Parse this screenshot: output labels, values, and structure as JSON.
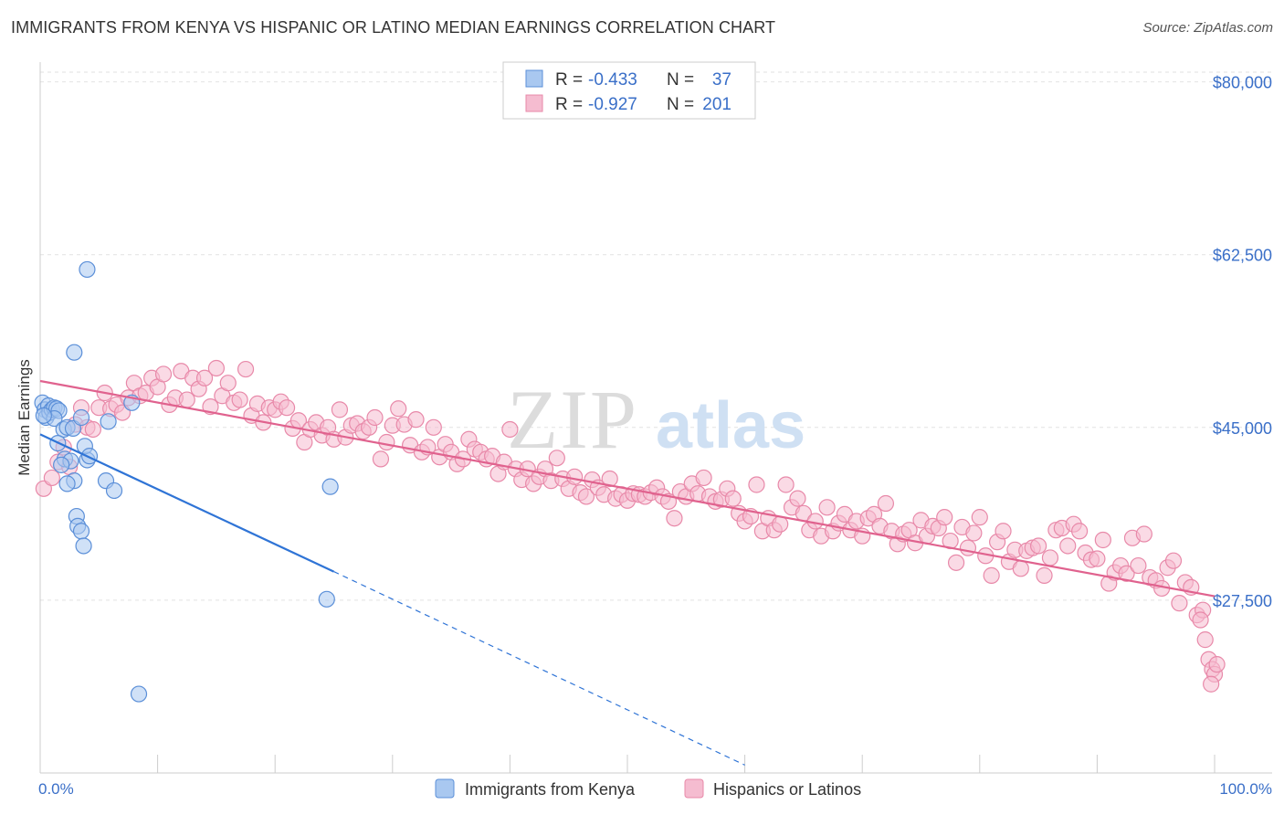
{
  "chart_data": {
    "type": "scatter",
    "title": "IMMIGRANTS FROM KENYA VS HISPANIC OR LATINO MEDIAN EARNINGS CORRELATION CHART",
    "source": "Source: ZipAtlas.com",
    "ylabel": "Median Earnings",
    "xlim": [
      0,
      100
    ],
    "ylim": [
      10000,
      82000
    ],
    "x_tick_labels": [
      "0.0%",
      "100.0%"
    ],
    "y_ticks": [
      27500,
      45000,
      62500,
      80000
    ],
    "y_tick_labels": [
      "$27,500",
      "$45,000",
      "$62,500",
      "$80,000"
    ],
    "grid": true,
    "legend_position": "top-center",
    "watermark": "ZIPatlas",
    "colors": {
      "kenya_fill": "#a9c8f0",
      "kenya_stroke": "#5b8fd8",
      "kenya_line": "#2f74d6",
      "hispanic_fill": "#f5bcd0",
      "hispanic_stroke": "#e889a9",
      "hispanic_line": "#e0628e",
      "value_text": "#3a6fc8"
    },
    "stats": [
      {
        "r_label": "R =",
        "r_value": "-0.433",
        "n_label": "N =",
        "n_value": "37"
      },
      {
        "r_label": "R =",
        "r_value": "-0.927",
        "n_label": "N =",
        "n_value": "201"
      }
    ],
    "series": [
      {
        "name": "Immigrants from Kenya",
        "trend": {
          "x0": 0,
          "y0": 44300,
          "x1": 25,
          "y1": 30400,
          "dash_x_end": 60,
          "dash_y_end": 10800
        },
        "points": [
          [
            0.2,
            47.5
          ],
          [
            0.4,
            46.8
          ],
          [
            0.5,
            46.0
          ],
          [
            0.7,
            47.2
          ],
          [
            0.8,
            46.5
          ],
          [
            1.0,
            46.8
          ],
          [
            1.2,
            47.0
          ],
          [
            1.4,
            46.9
          ],
          [
            1.6,
            46.7
          ],
          [
            1.2,
            45.9
          ],
          [
            2.0,
            44.8
          ],
          [
            2.3,
            45.0
          ],
          [
            2.8,
            44.9
          ],
          [
            3.5,
            46.0
          ],
          [
            1.5,
            43.4
          ],
          [
            2.1,
            41.8
          ],
          [
            2.6,
            41.6
          ],
          [
            1.8,
            41.2
          ],
          [
            2.9,
            39.6
          ],
          [
            4.0,
            41.7
          ],
          [
            3.8,
            43.1
          ],
          [
            4.2,
            42.1
          ],
          [
            2.3,
            39.3
          ],
          [
            5.6,
            39.6
          ],
          [
            6.3,
            38.6
          ],
          [
            3.1,
            36.0
          ],
          [
            3.2,
            35.0
          ],
          [
            3.5,
            34.5
          ],
          [
            3.7,
            33.0
          ],
          [
            4.0,
            61.0
          ],
          [
            2.9,
            52.6
          ],
          [
            5.8,
            45.6
          ],
          [
            7.8,
            47.5
          ],
          [
            24.7,
            39.0
          ],
          [
            24.4,
            27.6
          ],
          [
            8.4,
            18.0
          ],
          [
            0.3,
            46.2
          ]
        ]
      },
      {
        "name": "Hispanics or Latinos",
        "trend": {
          "x0": 0,
          "y0": 49700,
          "x1": 100,
          "y1": 27900
        },
        "points": [
          [
            0.3,
            38.8
          ],
          [
            1.0,
            39.9
          ],
          [
            1.5,
            41.5
          ],
          [
            2.0,
            43.0
          ],
          [
            2.5,
            41.0
          ],
          [
            3.0,
            45.3
          ],
          [
            3.5,
            47.0
          ],
          [
            4.0,
            45.0
          ],
          [
            4.5,
            44.8
          ],
          [
            5.0,
            47.0
          ],
          [
            5.5,
            48.5
          ],
          [
            6.0,
            46.9
          ],
          [
            6.5,
            47.3
          ],
          [
            7.0,
            46.5
          ],
          [
            7.5,
            48.0
          ],
          [
            8.0,
            49.5
          ],
          [
            8.5,
            48.2
          ],
          [
            9.0,
            48.5
          ],
          [
            9.5,
            50.0
          ],
          [
            10.0,
            49.1
          ],
          [
            10.5,
            50.4
          ],
          [
            11.0,
            47.3
          ],
          [
            11.5,
            48.0
          ],
          [
            12.0,
            50.7
          ],
          [
            12.5,
            47.8
          ],
          [
            13.0,
            50.0
          ],
          [
            13.5,
            48.9
          ],
          [
            14.0,
            50.0
          ],
          [
            14.5,
            47.1
          ],
          [
            15.0,
            51.0
          ],
          [
            15.5,
            48.2
          ],
          [
            16.0,
            49.5
          ],
          [
            16.5,
            47.5
          ],
          [
            17.0,
            47.8
          ],
          [
            17.5,
            50.9
          ],
          [
            18.0,
            46.2
          ],
          [
            18.5,
            47.4
          ],
          [
            19.0,
            45.5
          ],
          [
            19.5,
            47.0
          ],
          [
            20.0,
            46.8
          ],
          [
            20.5,
            47.6
          ],
          [
            21.0,
            47.0
          ],
          [
            21.5,
            44.9
          ],
          [
            22.0,
            45.7
          ],
          [
            22.5,
            43.5
          ],
          [
            23.0,
            44.8
          ],
          [
            23.5,
            45.5
          ],
          [
            24.0,
            44.2
          ],
          [
            24.5,
            45.0
          ],
          [
            25.0,
            43.8
          ],
          [
            25.5,
            46.8
          ],
          [
            26.0,
            44.0
          ],
          [
            26.5,
            45.2
          ],
          [
            27.0,
            45.4
          ],
          [
            27.5,
            44.6
          ],
          [
            28.0,
            45.0
          ],
          [
            28.5,
            46.0
          ],
          [
            29.0,
            41.8
          ],
          [
            29.5,
            43.5
          ],
          [
            30.0,
            45.2
          ],
          [
            30.5,
            46.9
          ],
          [
            31.0,
            45.3
          ],
          [
            31.5,
            43.2
          ],
          [
            32.0,
            45.8
          ],
          [
            32.5,
            42.5
          ],
          [
            33.0,
            43.0
          ],
          [
            33.5,
            45.0
          ],
          [
            34.0,
            42.0
          ],
          [
            34.5,
            43.3
          ],
          [
            35.0,
            42.5
          ],
          [
            35.5,
            41.3
          ],
          [
            36.0,
            41.8
          ],
          [
            36.5,
            43.8
          ],
          [
            37.0,
            42.8
          ],
          [
            37.5,
            42.5
          ],
          [
            38.0,
            41.8
          ],
          [
            38.5,
            42.1
          ],
          [
            39.0,
            40.3
          ],
          [
            39.5,
            41.5
          ],
          [
            40.0,
            44.8
          ],
          [
            40.5,
            40.8
          ],
          [
            41.0,
            39.7
          ],
          [
            41.5,
            40.8
          ],
          [
            42.0,
            39.3
          ],
          [
            42.5,
            40.0
          ],
          [
            43.0,
            40.8
          ],
          [
            43.5,
            39.6
          ],
          [
            44.0,
            41.9
          ],
          [
            44.5,
            39.8
          ],
          [
            45.0,
            38.8
          ],
          [
            45.5,
            40.0
          ],
          [
            46.0,
            38.4
          ],
          [
            46.5,
            38.0
          ],
          [
            47.0,
            39.7
          ],
          [
            47.5,
            38.9
          ],
          [
            48.0,
            38.2
          ],
          [
            48.5,
            39.8
          ],
          [
            49.0,
            37.8
          ],
          [
            49.5,
            38.2
          ],
          [
            50.0,
            37.6
          ],
          [
            50.5,
            38.3
          ],
          [
            51.0,
            38.2
          ],
          [
            51.5,
            38.0
          ],
          [
            52.0,
            38.4
          ],
          [
            52.5,
            38.9
          ],
          [
            53.0,
            38.0
          ],
          [
            53.5,
            37.5
          ],
          [
            54.0,
            35.8
          ],
          [
            54.5,
            38.5
          ],
          [
            55.0,
            38.0
          ],
          [
            55.5,
            39.3
          ],
          [
            56.0,
            38.3
          ],
          [
            56.5,
            39.9
          ],
          [
            57.0,
            38.0
          ],
          [
            57.5,
            37.5
          ],
          [
            58.0,
            37.7
          ],
          [
            58.5,
            38.8
          ],
          [
            59.0,
            37.8
          ],
          [
            59.5,
            36.3
          ],
          [
            60.0,
            35.5
          ],
          [
            60.5,
            36.0
          ],
          [
            61.0,
            39.2
          ],
          [
            61.5,
            34.5
          ],
          [
            62.0,
            35.8
          ],
          [
            62.5,
            34.6
          ],
          [
            63.0,
            35.2
          ],
          [
            63.5,
            39.2
          ],
          [
            64.0,
            36.9
          ],
          [
            64.5,
            37.8
          ],
          [
            65.0,
            36.3
          ],
          [
            65.5,
            34.6
          ],
          [
            66.0,
            35.5
          ],
          [
            66.5,
            34.0
          ],
          [
            67.0,
            36.9
          ],
          [
            67.5,
            34.5
          ],
          [
            68.0,
            35.3
          ],
          [
            68.5,
            36.2
          ],
          [
            69.0,
            34.6
          ],
          [
            69.5,
            35.5
          ],
          [
            70.0,
            34.0
          ],
          [
            70.5,
            35.8
          ],
          [
            71.0,
            36.2
          ],
          [
            71.5,
            35.0
          ],
          [
            72.0,
            37.3
          ],
          [
            72.5,
            34.5
          ],
          [
            73.0,
            33.2
          ],
          [
            73.5,
            34.2
          ],
          [
            74.0,
            34.6
          ],
          [
            74.5,
            33.3
          ],
          [
            75.0,
            35.6
          ],
          [
            75.5,
            34.0
          ],
          [
            76.0,
            35.0
          ],
          [
            76.5,
            34.8
          ],
          [
            77.0,
            35.9
          ],
          [
            77.5,
            33.5
          ],
          [
            78.0,
            31.3
          ],
          [
            78.5,
            34.9
          ],
          [
            79.0,
            32.8
          ],
          [
            79.5,
            34.3
          ],
          [
            80.0,
            35.9
          ],
          [
            80.5,
            32.0
          ],
          [
            81.0,
            30.0
          ],
          [
            81.5,
            33.4
          ],
          [
            82.0,
            34.5
          ],
          [
            82.5,
            31.4
          ],
          [
            83.0,
            32.6
          ],
          [
            83.5,
            30.7
          ],
          [
            84.0,
            32.5
          ],
          [
            84.5,
            32.8
          ],
          [
            85.0,
            33.0
          ],
          [
            85.5,
            30.0
          ],
          [
            86.0,
            31.8
          ],
          [
            86.5,
            34.6
          ],
          [
            87.0,
            34.8
          ],
          [
            87.5,
            33.0
          ],
          [
            88.0,
            35.2
          ],
          [
            88.5,
            34.5
          ],
          [
            89.0,
            32.3
          ],
          [
            89.5,
            31.6
          ],
          [
            90.0,
            31.7
          ],
          [
            90.5,
            33.6
          ],
          [
            91.0,
            29.2
          ],
          [
            91.5,
            30.3
          ],
          [
            92.0,
            31.0
          ],
          [
            92.5,
            30.2
          ],
          [
            93.0,
            33.8
          ],
          [
            93.5,
            31.0
          ],
          [
            94.0,
            34.2
          ],
          [
            94.5,
            29.8
          ],
          [
            95.0,
            29.5
          ],
          [
            95.5,
            28.7
          ],
          [
            96.0,
            30.8
          ],
          [
            96.5,
            31.5
          ],
          [
            97.0,
            27.2
          ],
          [
            97.5,
            29.3
          ],
          [
            98.0,
            28.8
          ],
          [
            98.5,
            26.0
          ],
          [
            99.0,
            26.5
          ],
          [
            99.2,
            23.5
          ],
          [
            99.5,
            21.5
          ],
          [
            99.8,
            20.5
          ],
          [
            100.0,
            20.0
          ],
          [
            99.7,
            19.0
          ],
          [
            100.2,
            21.0
          ],
          [
            98.8,
            25.5
          ]
        ]
      }
    ]
  },
  "legend": {
    "items": [
      "Immigrants from Kenya",
      "Hispanics or Latinos"
    ]
  }
}
